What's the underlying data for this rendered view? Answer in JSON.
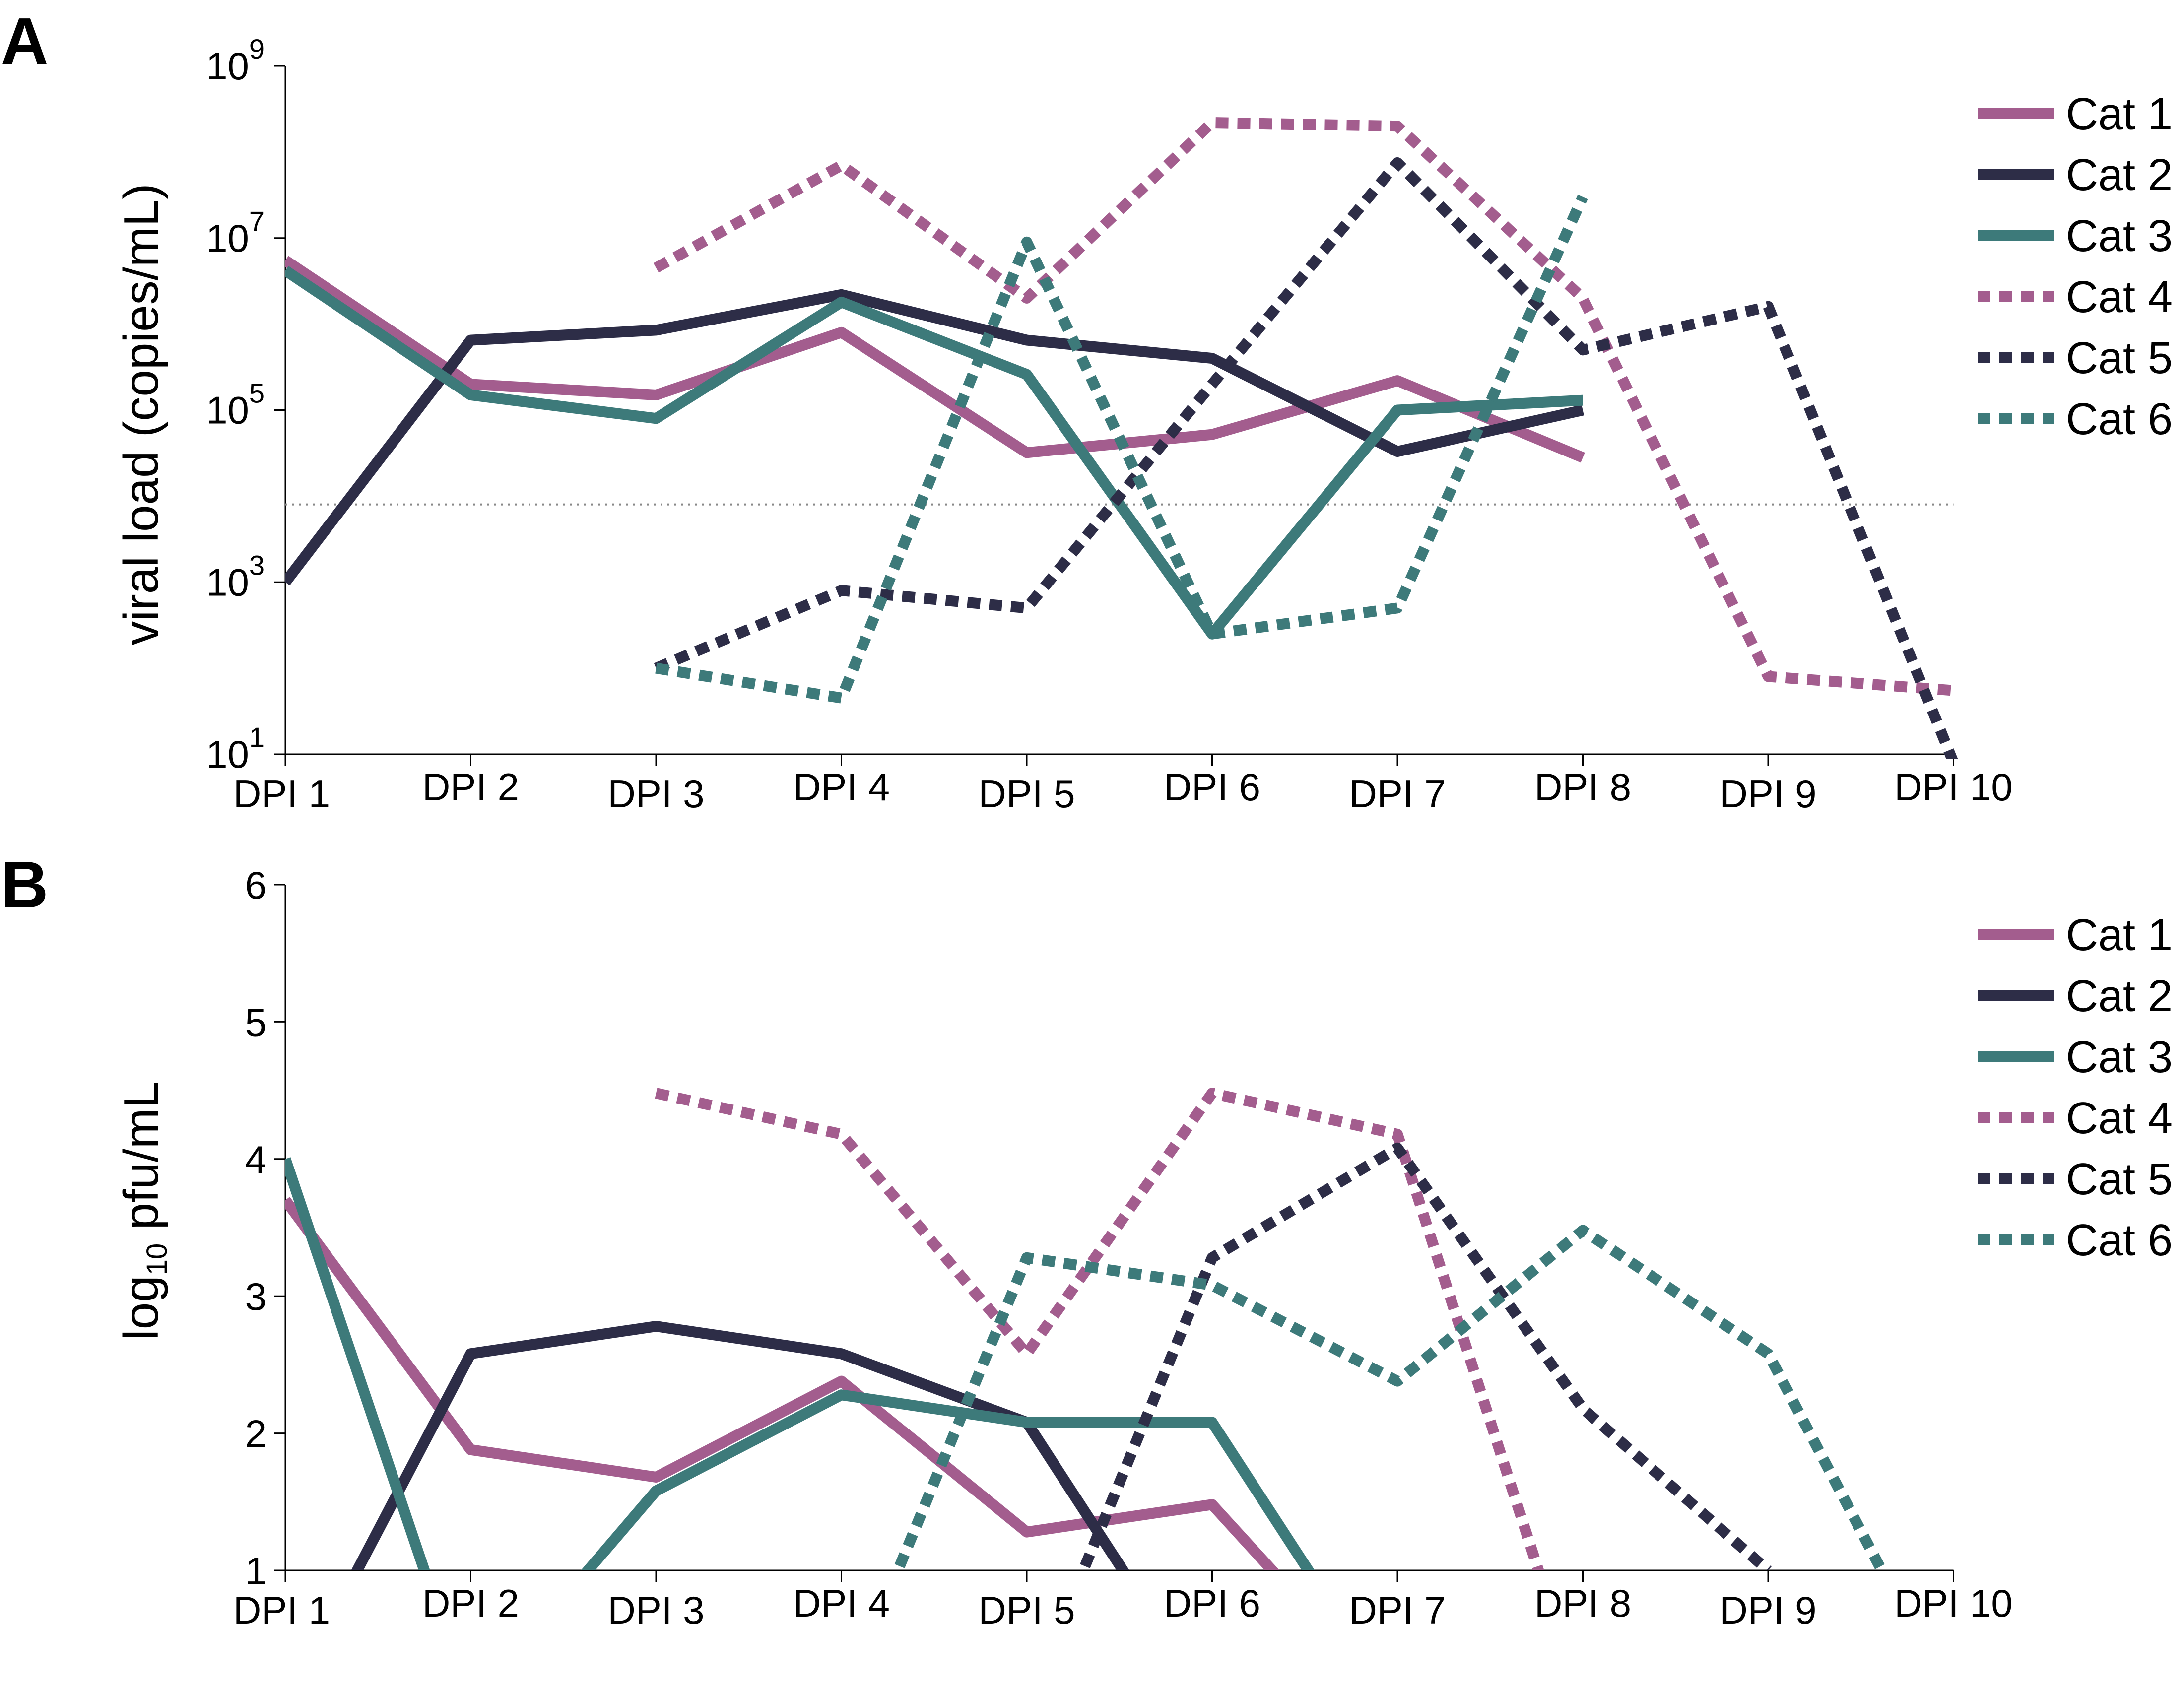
{
  "colors": {
    "cat1": "#a35d8e",
    "cat2": "#2d2d47",
    "cat3": "#3d7a7a",
    "threshold": "#888888"
  },
  "chart_data": [
    {
      "panel": "A",
      "type": "line",
      "ylabel": "viral load (copies/mL)",
      "yscale": "log",
      "ylim": [
        10,
        1000000000
      ],
      "yticks": [
        10,
        1000,
        100000,
        10000000,
        1000000000
      ],
      "ytick_labels": [
        {
          "base": "10",
          "exp": "1"
        },
        {
          "base": "10",
          "exp": "3"
        },
        {
          "base": "10",
          "exp": "5"
        },
        {
          "base": "10",
          "exp": "7"
        },
        {
          "base": "10",
          "exp": "9"
        }
      ],
      "threshold": 8000,
      "categories": [
        "DPI 1",
        "DPI 2",
        "DPI 3",
        "DPI 4",
        "DPI 5",
        "DPI 6",
        "DPI 7",
        "DPI 8",
        "DPI 9",
        "DPI 10"
      ],
      "legend_position": "right",
      "series": [
        {
          "name": "Cat 1",
          "style": "solid",
          "color": "#a35d8e",
          "values": [
            5500000,
            200000,
            150000,
            800000,
            32000,
            52000,
            220000,
            28000,
            null,
            null
          ]
        },
        {
          "name": "Cat 2",
          "style": "solid",
          "color": "#2d2d47",
          "values": [
            1000,
            650000,
            850000,
            2200000,
            650000,
            400000,
            33000,
            100000,
            null,
            null
          ]
        },
        {
          "name": "Cat 3",
          "style": "solid",
          "color": "#3d7a7a",
          "values": [
            4200000,
            150000,
            80000,
            1800000,
            260000,
            250,
            100000,
            130000,
            null,
            null
          ]
        },
        {
          "name": "Cat 4",
          "style": "dashed",
          "color": "#a35d8e",
          "values": [
            null,
            null,
            4500000,
            70000000,
            2000000,
            220000000,
            200000000,
            2000000,
            80,
            55
          ]
        },
        {
          "name": "Cat 5",
          "style": "dashed",
          "color": "#2d2d47",
          "values": [
            null,
            null,
            100,
            800,
            500,
            200000,
            75000000,
            500000,
            1600000,
            8
          ]
        },
        {
          "name": "Cat 6",
          "style": "dashed",
          "color": "#3d7a7a",
          "values": [
            null,
            null,
            100,
            45,
            9000000,
            250,
            500,
            30000000,
            null,
            null
          ]
        }
      ]
    },
    {
      "panel": "B",
      "type": "line",
      "ylabel_base": "log",
      "ylabel_sub": "10",
      "ylabel_rest": " pfu/mL",
      "ylim": [
        1,
        6
      ],
      "yticks": [
        1,
        2,
        3,
        4,
        5,
        6
      ],
      "categories": [
        "DPI 1",
        "DPI 2",
        "DPI 3",
        "DPI 4",
        "DPI 5",
        "DPI 6",
        "DPI 7",
        "DPI 8",
        "DPI 9",
        "DPI 10"
      ],
      "legend_position": "right",
      "series": [
        {
          "name": "Cat 1",
          "style": "solid",
          "color": "#a35d8e",
          "values": [
            3.7,
            1.88,
            1.68,
            2.38,
            1.28,
            1.48,
            0.0,
            null,
            null,
            null
          ]
        },
        {
          "name": "Cat 2",
          "style": "solid",
          "color": "#2d2d47",
          "values": [
            0.0,
            2.58,
            2.78,
            2.58,
            2.08,
            0.0,
            null,
            null,
            null,
            null
          ]
        },
        {
          "name": "Cat 3",
          "style": "solid",
          "color": "#3d7a7a",
          "values": [
            4.0,
            0.0,
            1.58,
            2.28,
            2.08,
            2.08,
            0.0,
            null,
            null,
            null
          ]
        },
        {
          "name": "Cat 4",
          "style": "dashed",
          "color": "#a35d8e",
          "values": [
            null,
            null,
            4.48,
            4.18,
            2.58,
            4.48,
            4.18,
            0.0,
            null,
            null
          ]
        },
        {
          "name": "Cat 5",
          "style": "dashed",
          "color": "#2d2d47",
          "values": [
            null,
            null,
            null,
            null,
            0.0,
            3.28,
            4.08,
            2.18,
            1.0,
            null
          ]
        },
        {
          "name": "Cat 6",
          "style": "dashed",
          "color": "#3d7a7a",
          "values": [
            null,
            null,
            null,
            0.0,
            3.28,
            3.08,
            2.38,
            3.48,
            2.58,
            0.0
          ]
        }
      ]
    }
  ]
}
